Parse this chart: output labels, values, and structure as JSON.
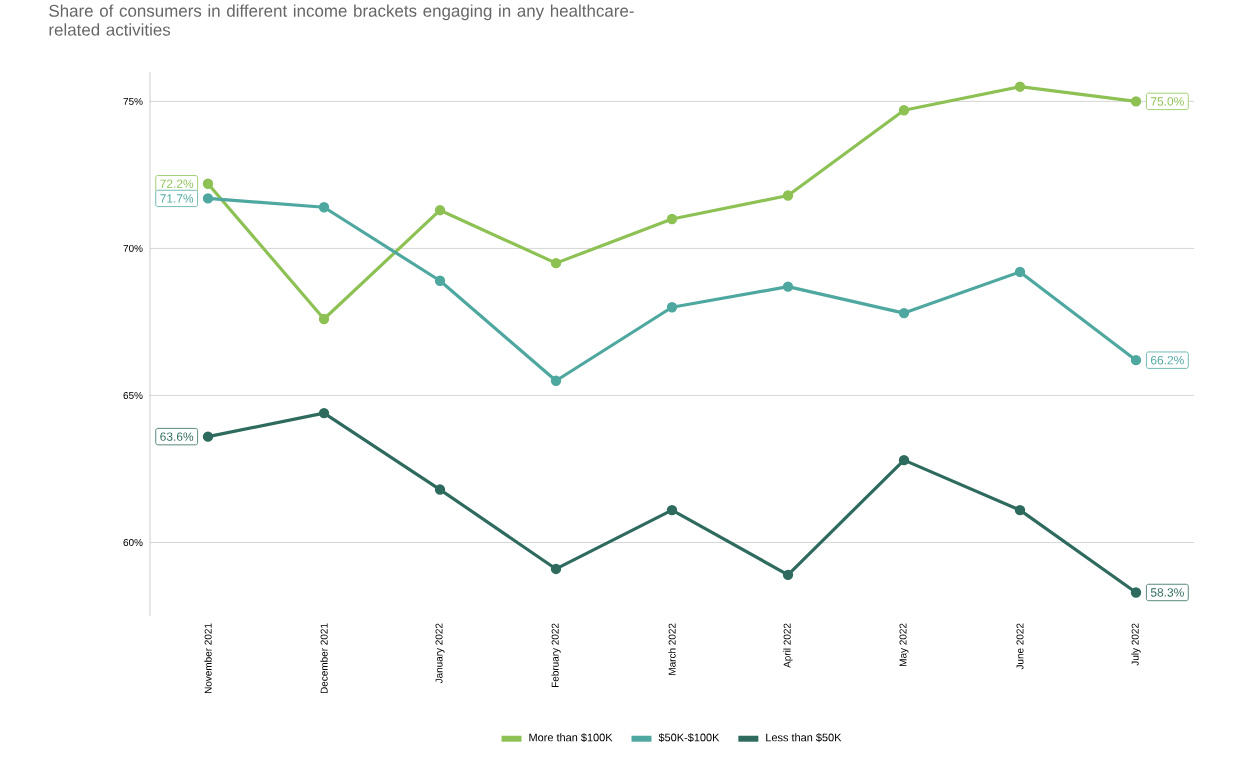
{
  "chart_data": {
    "type": "line",
    "title": "Share of consumers in different income brackets engaging in any healthcare-related activities",
    "categories": [
      "November 2021",
      "December 2021",
      "January 2022",
      "February 2022",
      "March 2022",
      "April 2022",
      "May 2022",
      "June 2022",
      "July 2022"
    ],
    "series": [
      {
        "name": "More than $100K",
        "color": "#8dc153",
        "values": [
          72.2,
          67.6,
          71.3,
          69.5,
          71.0,
          71.8,
          74.7,
          75.5,
          75.0
        ],
        "value_labels": [
          "72.2%",
          null,
          null,
          null,
          null,
          null,
          null,
          null,
          "75.0%"
        ]
      },
      {
        "name": "$50K-$100K",
        "color": "#4ea8a0",
        "values": [
          71.7,
          71.4,
          68.9,
          65.5,
          68.0,
          68.7,
          67.8,
          69.2,
          66.2
        ],
        "value_labels": [
          "71.7%",
          null,
          null,
          null,
          null,
          null,
          null,
          null,
          "66.2%"
        ]
      },
      {
        "name": "Less than $50K",
        "color": "#2e6b5e",
        "values": [
          63.6,
          64.4,
          61.8,
          59.1,
          61.1,
          58.9,
          62.8,
          61.1,
          58.3
        ],
        "value_labels": [
          "63.6%",
          null,
          null,
          null,
          null,
          null,
          null,
          null,
          "58.3%"
        ]
      }
    ],
    "ylim": [
      57.5,
      76
    ],
    "yticks": [
      {
        "value": 60,
        "label": "60%"
      },
      {
        "value": 65,
        "label": "65%"
      },
      {
        "value": 70,
        "label": "70%"
      },
      {
        "value": 75,
        "label": "75%"
      }
    ],
    "grid": "y",
    "legend": "bottom",
    "marker": "circle",
    "line_style": "solid"
  }
}
